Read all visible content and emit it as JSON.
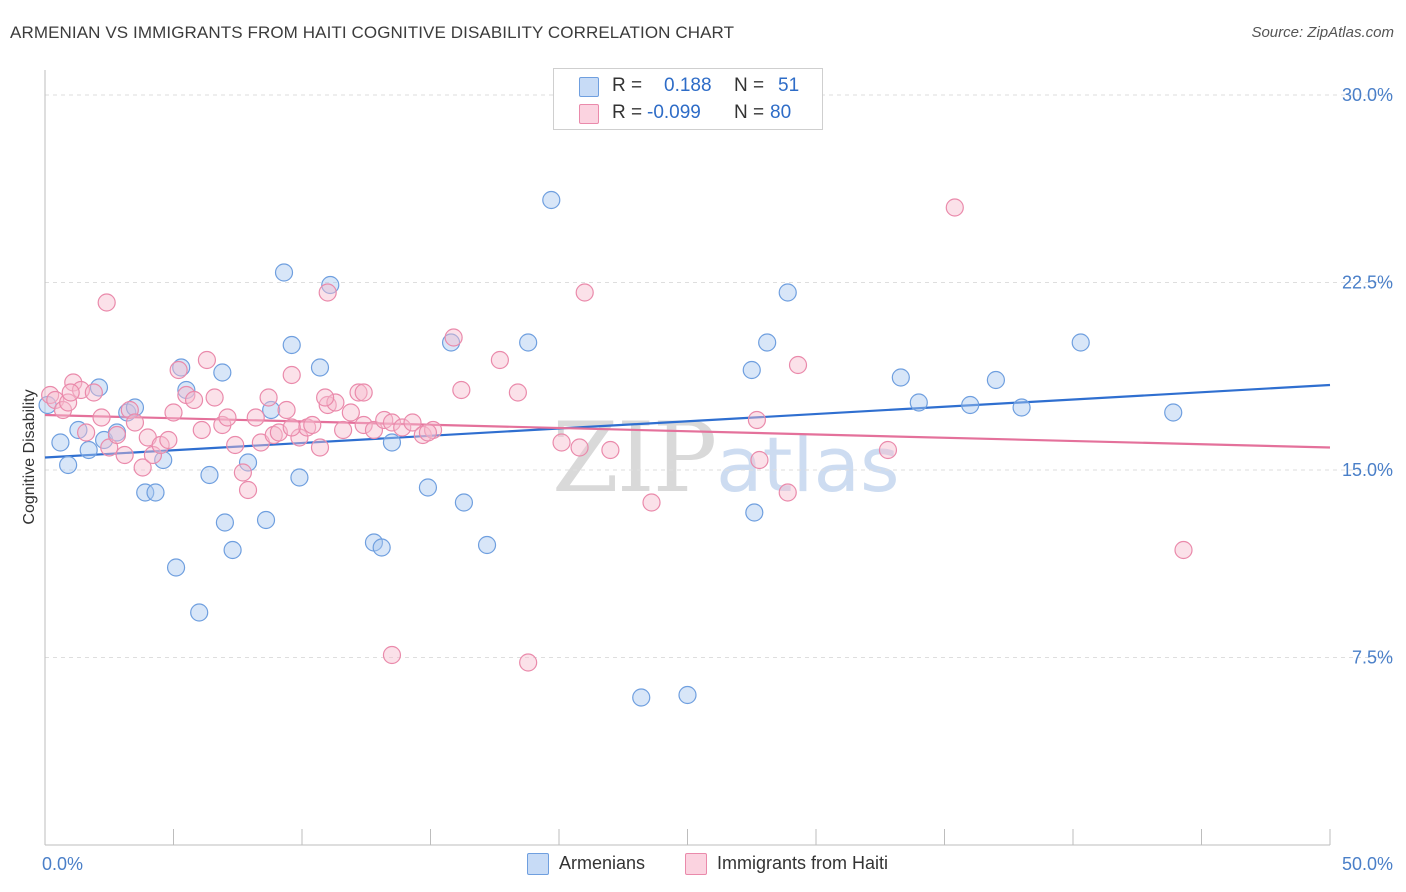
{
  "header": {
    "title": "ARMENIAN VS IMMIGRANTS FROM HAITI COGNITIVE DISABILITY CORRELATION CHART",
    "source": "Source: ZipAtlas.com"
  },
  "legend": {
    "armenians": {
      "r_label": "R =",
      "r_value": "0.188",
      "n_label": "N =",
      "n_value": "51"
    },
    "haiti": {
      "r_label": "R =",
      "r_value": "-0.099",
      "n_label": "N =",
      "n_value": "80"
    }
  },
  "bottom_legend": {
    "armenians": "Armenians",
    "haiti": "Immigrants from Haiti"
  },
  "watermark": {
    "zip": "ZIP",
    "atlas": "atlas"
  },
  "colors": {
    "blue_fill": "#a9c7f0",
    "blue_stroke": "#6f9fdf",
    "blue_line": "#2f6fd0",
    "pink_fill": "#f6bccf",
    "pink_stroke": "#ea8aab",
    "pink_line": "#e4719b",
    "tick_text": "#4a7fc8",
    "grid": "#dedede"
  },
  "chart_data": {
    "type": "scatter",
    "title": "ARMENIAN VS IMMIGRANTS FROM HAITI COGNITIVE DISABILITY CORRELATION CHART",
    "xlabel": "",
    "ylabel": "Cognitive Disability",
    "xlim": [
      0,
      50
    ],
    "ylim": [
      0,
      31
    ],
    "x_tick_labels": [
      {
        "value": 0,
        "label": "0.0%"
      },
      {
        "value": 50,
        "label": "50.0%"
      }
    ],
    "x_minor_ticks": [
      5,
      10,
      15,
      20,
      25,
      30,
      35,
      40,
      45,
      50
    ],
    "y_ticks": [
      {
        "value": 7.5,
        "label": "7.5%"
      },
      {
        "value": 15,
        "label": "15.0%"
      },
      {
        "value": 22.5,
        "label": "22.5%"
      },
      {
        "value": 30,
        "label": "30.0%"
      }
    ],
    "series": [
      {
        "name": "Armenians",
        "color": "blue",
        "trend": {
          "x": [
            0,
            50
          ],
          "y": [
            15.5,
            18.4
          ]
        },
        "points": [
          [
            0.1,
            17.6
          ],
          [
            0.6,
            16.1
          ],
          [
            1.3,
            16.6
          ],
          [
            0.9,
            15.2
          ],
          [
            1.7,
            15.8
          ],
          [
            2.1,
            18.3
          ],
          [
            2.3,
            16.2
          ],
          [
            2.8,
            16.5
          ],
          [
            3.2,
            17.3
          ],
          [
            3.5,
            17.5
          ],
          [
            3.9,
            14.1
          ],
          [
            4.3,
            14.1
          ],
          [
            4.6,
            15.4
          ],
          [
            5.1,
            11.1
          ],
          [
            5.3,
            19.1
          ],
          [
            5.5,
            18.2
          ],
          [
            6.0,
            9.3
          ],
          [
            6.4,
            14.8
          ],
          [
            6.9,
            18.9
          ],
          [
            7.0,
            12.9
          ],
          [
            7.3,
            11.8
          ],
          [
            7.9,
            15.3
          ],
          [
            8.6,
            13.0
          ],
          [
            8.8,
            17.4
          ],
          [
            9.3,
            22.9
          ],
          [
            9.6,
            20.0
          ],
          [
            9.9,
            14.7
          ],
          [
            10.7,
            19.1
          ],
          [
            11.1,
            22.4
          ],
          [
            12.8,
            12.1
          ],
          [
            13.1,
            11.9
          ],
          [
            13.5,
            16.1
          ],
          [
            14.9,
            14.3
          ],
          [
            15.8,
            20.1
          ],
          [
            16.3,
            13.7
          ],
          [
            17.2,
            12.0
          ],
          [
            18.8,
            20.1
          ],
          [
            19.7,
            25.8
          ],
          [
            23.2,
            5.9
          ],
          [
            25.0,
            6.0
          ],
          [
            27.5,
            19.0
          ],
          [
            27.6,
            13.3
          ],
          [
            28.1,
            20.1
          ],
          [
            28.9,
            22.1
          ],
          [
            33.3,
            18.7
          ],
          [
            34.0,
            17.7
          ],
          [
            36.0,
            17.6
          ],
          [
            37.0,
            18.6
          ],
          [
            38.0,
            17.5
          ],
          [
            40.3,
            20.1
          ],
          [
            43.9,
            17.3
          ]
        ]
      },
      {
        "name": "Immigrants from Haiti",
        "color": "pink",
        "trend": {
          "x": [
            0,
            50
          ],
          "y": [
            17.2,
            15.9
          ]
        },
        "points": [
          [
            0.2,
            18.0
          ],
          [
            0.4,
            17.8
          ],
          [
            0.7,
            17.4
          ],
          [
            0.9,
            17.7
          ],
          [
            1.1,
            18.5
          ],
          [
            1.4,
            18.2
          ],
          [
            1.6,
            16.5
          ],
          [
            1.9,
            18.1
          ],
          [
            2.2,
            17.1
          ],
          [
            2.5,
            15.9
          ],
          [
            2.8,
            16.4
          ],
          [
            3.1,
            15.6
          ],
          [
            3.3,
            17.4
          ],
          [
            3.5,
            16.9
          ],
          [
            3.8,
            15.1
          ],
          [
            4.0,
            16.3
          ],
          [
            4.2,
            15.6
          ],
          [
            4.5,
            16.0
          ],
          [
            4.8,
            16.2
          ],
          [
            5.0,
            17.3
          ],
          [
            5.2,
            19.0
          ],
          [
            5.5,
            18.0
          ],
          [
            5.8,
            17.8
          ],
          [
            6.1,
            16.6
          ],
          [
            6.3,
            19.4
          ],
          [
            6.6,
            17.9
          ],
          [
            6.9,
            16.8
          ],
          [
            7.1,
            17.1
          ],
          [
            7.4,
            16.0
          ],
          [
            7.7,
            14.9
          ],
          [
            7.9,
            14.2
          ],
          [
            8.2,
            17.1
          ],
          [
            8.4,
            16.1
          ],
          [
            8.7,
            17.9
          ],
          [
            8.9,
            16.4
          ],
          [
            9.1,
            16.5
          ],
          [
            9.4,
            17.4
          ],
          [
            9.6,
            18.8
          ],
          [
            9.9,
            16.3
          ],
          [
            10.2,
            16.7
          ],
          [
            10.4,
            16.8
          ],
          [
            10.7,
            15.9
          ],
          [
            11.0,
            17.6
          ],
          [
            11.3,
            17.7
          ],
          [
            11.6,
            16.6
          ],
          [
            11.9,
            17.3
          ],
          [
            12.4,
            16.8
          ],
          [
            12.8,
            16.6
          ],
          [
            13.2,
            17.0
          ],
          [
            13.5,
            16.9
          ],
          [
            13.9,
            16.7
          ],
          [
            14.3,
            16.9
          ],
          [
            14.7,
            16.4
          ],
          [
            15.1,
            16.6
          ],
          [
            2.4,
            21.7
          ],
          [
            11.0,
            22.1
          ],
          [
            12.2,
            18.1
          ],
          [
            15.9,
            20.3
          ],
          [
            16.2,
            18.2
          ],
          [
            17.7,
            19.4
          ],
          [
            18.4,
            18.1
          ],
          [
            20.1,
            16.1
          ],
          [
            20.8,
            15.9
          ],
          [
            21.0,
            22.1
          ],
          [
            22.0,
            15.8
          ],
          [
            23.6,
            13.7
          ],
          [
            18.8,
            7.3
          ],
          [
            13.5,
            7.6
          ],
          [
            27.7,
            17.0
          ],
          [
            27.8,
            15.4
          ],
          [
            28.9,
            14.1
          ],
          [
            29.3,
            19.2
          ],
          [
            32.8,
            15.8
          ],
          [
            35.4,
            25.5
          ],
          [
            44.3,
            11.8
          ],
          [
            1.0,
            18.1
          ],
          [
            12.4,
            18.1
          ],
          [
            9.6,
            16.7
          ],
          [
            10.9,
            17.9
          ],
          [
            14.9,
            16.5
          ]
        ]
      }
    ]
  }
}
